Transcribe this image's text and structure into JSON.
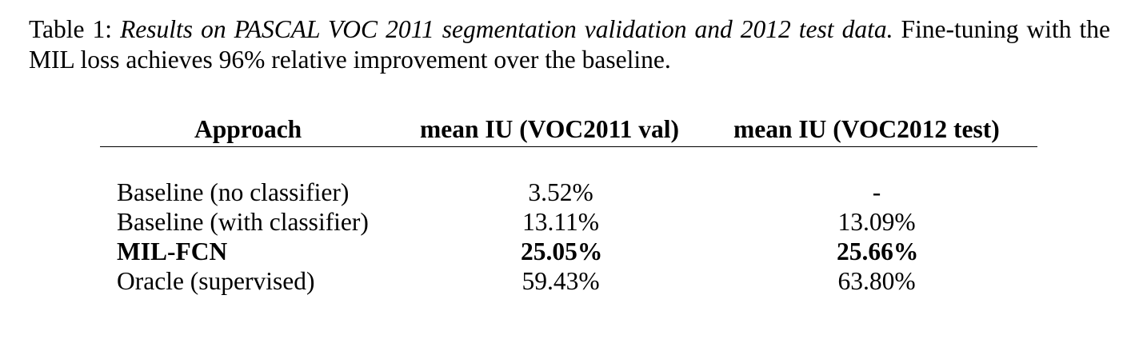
{
  "caption": {
    "label": "Table 1:",
    "title": "Results on PASCAL VOC 2011 segmentation validation and 2012 test data.",
    "body": "Fine-tuning with the MIL loss achieves 96% relative improvement over the baseline."
  },
  "table": {
    "headers": {
      "approach": "Approach",
      "val": "mean IU (VOC2011 val)",
      "test": "mean IU (VOC2012 test)"
    },
    "rows": [
      {
        "approach": "Baseline (no classifier)",
        "val": "3.52%",
        "test": "-",
        "bold": false
      },
      {
        "approach": "Baseline (with classifier)",
        "val": "13.11%",
        "test": "13.09%",
        "bold": false
      },
      {
        "approach": "MIL-FCN",
        "val": "25.05%",
        "test": "25.66%",
        "bold": true
      },
      {
        "approach": "Oracle (supervised)",
        "val": "59.43%",
        "test": "63.80%",
        "bold": false
      }
    ]
  }
}
